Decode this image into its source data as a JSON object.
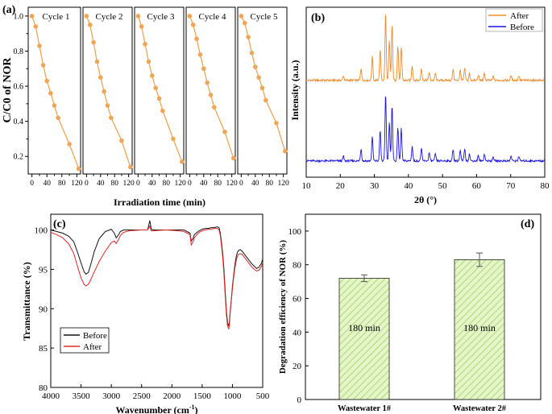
{
  "panels": {
    "a": {
      "label": "(a)"
    },
    "b": {
      "label": "(b)"
    },
    "c": {
      "label": "(c)"
    },
    "d": {
      "label": "(d)"
    }
  },
  "chart_data": [
    {
      "id": "a",
      "type": "line",
      "ylabel": "C/C0 of NOR",
      "xlabel": "Irradiation time (min)",
      "ylim": [
        0.1,
        1.05
      ],
      "xlim": [
        -10,
        130
      ],
      "yticks": [
        "0.2",
        "0.4",
        "0.6",
        "0.8",
        "1.0"
      ],
      "ytick_values": [
        0.2,
        0.4,
        0.6,
        0.8,
        1.0
      ],
      "xticks": [
        "0",
        "40",
        "80",
        "120"
      ],
      "xtick_values": [
        0,
        40,
        80,
        120
      ],
      "xticks_minor": [
        "20",
        "60",
        "100"
      ],
      "xticks_minor_values": [
        20,
        60,
        100
      ],
      "color": "#F0A558",
      "series": [
        {
          "name": "Cycle 1",
          "x": [
            0,
            10,
            20,
            30,
            40,
            50,
            60,
            70,
            100,
            125
          ],
          "y": [
            1.0,
            0.94,
            0.83,
            0.72,
            0.63,
            0.56,
            0.49,
            0.42,
            0.27,
            0.13
          ]
        },
        {
          "name": "Cycle 2",
          "x": [
            0,
            10,
            20,
            30,
            40,
            50,
            60,
            70,
            100,
            125
          ],
          "y": [
            1.0,
            0.95,
            0.85,
            0.74,
            0.65,
            0.57,
            0.49,
            0.42,
            0.29,
            0.14
          ]
        },
        {
          "name": "Cycle 3",
          "x": [
            0,
            10,
            20,
            30,
            40,
            50,
            60,
            70,
            100,
            125
          ],
          "y": [
            1.0,
            0.94,
            0.84,
            0.74,
            0.66,
            0.59,
            0.53,
            0.46,
            0.3,
            0.17
          ]
        },
        {
          "name": "Cycle 4",
          "x": [
            0,
            10,
            20,
            30,
            40,
            50,
            60,
            70,
            100,
            125
          ],
          "y": [
            1.0,
            0.95,
            0.87,
            0.78,
            0.7,
            0.62,
            0.55,
            0.48,
            0.34,
            0.19
          ]
        },
        {
          "name": "Cycle 5",
          "x": [
            0,
            10,
            20,
            30,
            40,
            50,
            60,
            70,
            100,
            125
          ],
          "y": [
            1.0,
            0.96,
            0.88,
            0.79,
            0.71,
            0.65,
            0.59,
            0.52,
            0.39,
            0.23
          ]
        }
      ]
    },
    {
      "id": "b",
      "type": "line",
      "ylabel": "Intensity (a.u.)",
      "xlabel": "2θ (°)",
      "xlim": [
        10,
        80
      ],
      "xticks": [
        "10",
        "20",
        "30",
        "40",
        "50",
        "60",
        "70",
        "80"
      ],
      "xtick_values": [
        10,
        20,
        30,
        40,
        50,
        60,
        70,
        80
      ],
      "legend_position": "top-right",
      "peaks_2theta": [
        20.9,
        26.1,
        29.4,
        31.7,
        33.3,
        34.4,
        35.2,
        36.9,
        37.9,
        41.1,
        43.8,
        46.1,
        47.9,
        53.1,
        55.2,
        56.5,
        57.9,
        60.5,
        62.3,
        64.9,
        70.1,
        72.4
      ],
      "peak_heights": [
        0.07,
        0.18,
        0.35,
        0.45,
        1.0,
        0.58,
        0.82,
        0.5,
        0.48,
        0.22,
        0.18,
        0.12,
        0.1,
        0.17,
        0.15,
        0.18,
        0.1,
        0.08,
        0.1,
        0.06,
        0.07,
        0.07
      ],
      "series": [
        {
          "name": "After",
          "color": "#F08A28",
          "offset": 1
        },
        {
          "name": "Before",
          "color": "#1A14E0",
          "offset": 0
        }
      ]
    },
    {
      "id": "c",
      "type": "line",
      "ylabel": "Transmittance (%)",
      "xlabel": "Wavenumber (cm-1)",
      "xlim": [
        4000,
        500
      ],
      "ylim": [
        80,
        102
      ],
      "xticks": [
        "4000",
        "3500",
        "3000",
        "2500",
        "2000",
        "1500",
        "1000",
        "500"
      ],
      "xtick_values": [
        4000,
        3500,
        3000,
        2500,
        2000,
        1500,
        1000,
        500
      ],
      "yticks": [
        "80",
        "85",
        "90",
        "95",
        "100"
      ],
      "ytick_values": [
        80,
        85,
        90,
        95,
        100
      ],
      "legend_position": "bottom-left",
      "series": [
        {
          "name": "Before",
          "color": "#111111",
          "x": [
            4000,
            3900,
            3800,
            3700,
            3620,
            3560,
            3500,
            3450,
            3420,
            3380,
            3340,
            3280,
            3200,
            3100,
            3000,
            2950,
            2920,
            2880,
            2850,
            2800,
            2700,
            2500,
            2400,
            2365,
            2340,
            2300,
            2100,
            1900,
            1800,
            1700,
            1680,
            1650,
            1630,
            1600,
            1550,
            1500,
            1450,
            1400,
            1350,
            1300,
            1250,
            1220,
            1200,
            1180,
            1160,
            1140,
            1120,
            1100,
            1080,
            1060,
            1050,
            1040,
            1020,
            1000,
            980,
            960,
            940,
            920,
            900,
            870,
            840,
            800,
            760,
            720,
            680,
            640,
            600,
            560,
            520,
            500
          ],
          "y": [
            100.0,
            99.8,
            99.6,
            99.2,
            98.5,
            97.2,
            95.8,
            94.7,
            94.4,
            94.6,
            95.6,
            97.3,
            98.9,
            99.8,
            100.1,
            99.6,
            99.0,
            99.4,
            99.8,
            100.0,
            100.0,
            100.0,
            100.0,
            101.2,
            100.1,
            100.0,
            100.0,
            100.0,
            100.0,
            99.6,
            98.6,
            98.9,
            99.4,
            99.6,
            99.9,
            100.1,
            100.2,
            100.2,
            100.3,
            100.3,
            100.4,
            100.3,
            99.6,
            98.4,
            97.0,
            95.0,
            92.3,
            89.8,
            88.2,
            87.8,
            88.4,
            89.4,
            91.0,
            92.8,
            94.2,
            95.5,
            96.5,
            97.1,
            97.4,
            97.5,
            97.3,
            96.9,
            96.5,
            96.1,
            95.7,
            95.4,
            95.1,
            95.3,
            95.8,
            96.3
          ]
        },
        {
          "name": "After",
          "color": "#E02828",
          "x": [
            4000,
            3900,
            3800,
            3700,
            3620,
            3560,
            3500,
            3450,
            3420,
            3380,
            3340,
            3280,
            3200,
            3100,
            3000,
            2950,
            2920,
            2880,
            2850,
            2800,
            2700,
            2500,
            2400,
            2365,
            2340,
            2300,
            2100,
            1900,
            1800,
            1700,
            1680,
            1650,
            1630,
            1600,
            1550,
            1500,
            1450,
            1400,
            1350,
            1300,
            1250,
            1220,
            1200,
            1180,
            1160,
            1140,
            1120,
            1100,
            1080,
            1060,
            1050,
            1040,
            1020,
            1000,
            980,
            960,
            940,
            920,
            900,
            870,
            840,
            800,
            760,
            720,
            680,
            640,
            600,
            560,
            520,
            500
          ],
          "y": [
            99.7,
            99.4,
            99.0,
            98.2,
            97.0,
            95.4,
            93.9,
            93.1,
            92.9,
            93.1,
            93.7,
            94.7,
            96.0,
            97.3,
            98.4,
            98.6,
            98.3,
            98.8,
            99.3,
            99.7,
            99.9,
            100.0,
            100.0,
            100.5,
            99.9,
            99.9,
            100.0,
            99.9,
            99.8,
            99.4,
            98.1,
            98.5,
            99.0,
            99.3,
            99.7,
            99.9,
            100.0,
            100.1,
            100.1,
            100.2,
            100.2,
            100.0,
            99.3,
            98.0,
            96.5,
            94.4,
            91.7,
            89.3,
            87.8,
            87.4,
            88.0,
            89.2,
            90.8,
            92.5,
            93.9,
            95.1,
            96.0,
            96.6,
            96.9,
            97.0,
            96.9,
            96.5,
            96.1,
            95.7,
            95.3,
            95.0,
            94.8,
            94.9,
            95.4,
            95.9
          ]
        }
      ]
    },
    {
      "id": "d",
      "type": "bar",
      "ylabel": "Degradation efficiency of NOR (%)",
      "ylim": [
        0,
        110
      ],
      "yticks": [
        "0",
        "20",
        "40",
        "60",
        "80",
        "100"
      ],
      "ytick_values": [
        0,
        20,
        40,
        60,
        80,
        100
      ],
      "categories": [
        "Wastewater 1#",
        "Wastewater 2#"
      ],
      "values": [
        72,
        83
      ],
      "errors": [
        2,
        4
      ],
      "bar_labels": [
        "180 min",
        "180 min"
      ],
      "bar_fill": "#E6F5C8",
      "bar_hatch": "#A8D878"
    }
  ]
}
